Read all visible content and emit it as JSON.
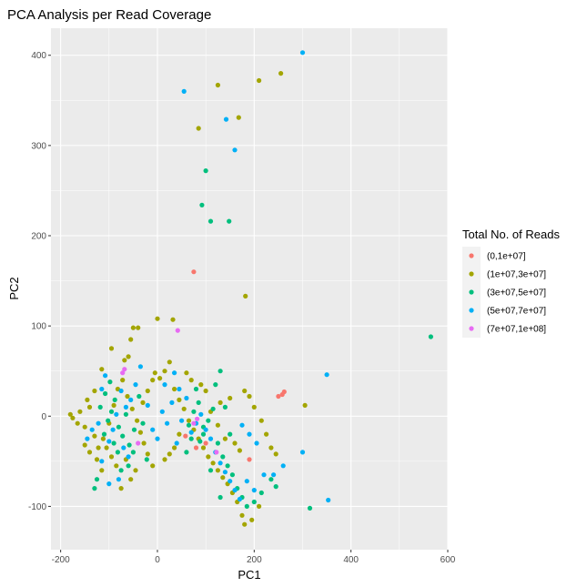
{
  "chart_data": {
    "type": "scatter",
    "title": "PCA Analysis per Read Coverage",
    "xlabel": "PC1",
    "ylabel": "PC2",
    "xlim": [
      -220,
      600
    ],
    "ylim": [
      -148,
      430
    ],
    "xticks": [
      -200,
      0,
      200,
      400,
      600
    ],
    "yticks": [
      -100,
      0,
      100,
      200,
      300,
      400
    ],
    "grid": true,
    "legend": {
      "title": "Total No. of Reads",
      "position": "right"
    },
    "series": [
      {
        "name": "(0,1e+07]",
        "color": "#F8766D",
        "points": [
          [
            75,
            160
          ],
          [
            250,
            22
          ],
          [
            258,
            24
          ],
          [
            262,
            27
          ],
          [
            190,
            -48
          ],
          [
            80,
            -35
          ],
          [
            100,
            -30
          ],
          [
            58,
            -22
          ]
        ]
      },
      {
        "name": "(1e+07,3e+07]",
        "color": "#A3A500",
        "points": [
          [
            125,
            367
          ],
          [
            210,
            372
          ],
          [
            255,
            380
          ],
          [
            85,
            319
          ],
          [
            168,
            331
          ],
          [
            182,
            133
          ],
          [
            0,
            108
          ],
          [
            32,
            107
          ],
          [
            -50,
            98
          ],
          [
            -40,
            98
          ],
          [
            -55,
            85
          ],
          [
            -60,
            66
          ],
          [
            -68,
            62
          ],
          [
            -95,
            75
          ],
          [
            -115,
            52
          ],
          [
            -130,
            28
          ],
          [
            -145,
            18
          ],
          [
            -160,
            5
          ],
          [
            -175,
            -2
          ],
          [
            -180,
            2
          ],
          [
            -165,
            -8
          ],
          [
            -150,
            -12
          ],
          [
            -140,
            10
          ],
          [
            -130,
            -22
          ],
          [
            -122,
            -35
          ],
          [
            -112,
            -25
          ],
          [
            -100,
            -8
          ],
          [
            -90,
            12
          ],
          [
            -82,
            30
          ],
          [
            -72,
            40
          ],
          [
            -62,
            22
          ],
          [
            -52,
            8
          ],
          [
            -42,
            -5
          ],
          [
            -35,
            -18
          ],
          [
            -28,
            -30
          ],
          [
            -20,
            -42
          ],
          [
            -10,
            -55
          ],
          [
            -45,
            -60
          ],
          [
            -55,
            -70
          ],
          [
            -75,
            -80
          ],
          [
            -115,
            -60
          ],
          [
            -125,
            -48
          ],
          [
            -140,
            -40
          ],
          [
            -150,
            -32
          ],
          [
            -105,
            -35
          ],
          [
            -95,
            -45
          ],
          [
            -85,
            -55
          ],
          [
            -65,
            -48
          ],
          [
            -30,
            15
          ],
          [
            -20,
            28
          ],
          [
            -10,
            40
          ],
          [
            5,
            42
          ],
          [
            15,
            50
          ],
          [
            25,
            60
          ],
          [
            35,
            30
          ],
          [
            45,
            18
          ],
          [
            55,
            8
          ],
          [
            65,
            -5
          ],
          [
            75,
            -15
          ],
          [
            85,
            -25
          ],
          [
            95,
            -35
          ],
          [
            105,
            -45
          ],
          [
            115,
            -52
          ],
          [
            125,
            -60
          ],
          [
            135,
            -68
          ],
          [
            145,
            -75
          ],
          [
            155,
            -85
          ],
          [
            165,
            -95
          ],
          [
            175,
            -110
          ],
          [
            180,
            -120
          ],
          [
            195,
            -115
          ],
          [
            210,
            -100
          ],
          [
            180,
            28
          ],
          [
            190,
            22
          ],
          [
            200,
            10
          ],
          [
            215,
            -5
          ],
          [
            225,
            -20
          ],
          [
            235,
            -35
          ],
          [
            245,
            -42
          ],
          [
            305,
            12
          ],
          [
            150,
            20
          ],
          [
            130,
            15
          ],
          [
            110,
            5
          ],
          [
            100,
            28
          ],
          [
            90,
            35
          ],
          [
            70,
            40
          ],
          [
            60,
            48
          ],
          [
            125,
            -10
          ],
          [
            140,
            -25
          ],
          [
            160,
            -30
          ],
          [
            170,
            -38
          ],
          [
            45,
            -20
          ],
          [
            35,
            -35
          ],
          [
            25,
            -42
          ],
          [
            15,
            -48
          ],
          [
            -5,
            48
          ]
        ]
      },
      {
        "name": "(3e+07,5e+07]",
        "color": "#00BF7D",
        "points": [
          [
            100,
            272
          ],
          [
            92,
            234
          ],
          [
            110,
            216
          ],
          [
            148,
            216
          ],
          [
            565,
            88
          ],
          [
            130,
            50
          ],
          [
            315,
            -102
          ],
          [
            -125,
            -70
          ],
          [
            -130,
            -80
          ],
          [
            -110,
            -20
          ],
          [
            -102,
            -5
          ],
          [
            -95,
            5
          ],
          [
            -88,
            18
          ],
          [
            -80,
            -12
          ],
          [
            -72,
            -22
          ],
          [
            -65,
            2
          ],
          [
            -58,
            -32
          ],
          [
            -48,
            -15
          ],
          [
            -38,
            22
          ],
          [
            -30,
            -8
          ],
          [
            -22,
            -48
          ],
          [
            -118,
            10
          ],
          [
            -108,
            25
          ],
          [
            -98,
            38
          ],
          [
            -90,
            -30
          ],
          [
            -82,
            -40
          ],
          [
            -75,
            -60
          ],
          [
            -60,
            -55
          ],
          [
            -50,
            -40
          ],
          [
            65,
            -10
          ],
          [
            75,
            5
          ],
          [
            85,
            15
          ],
          [
            95,
            -20
          ],
          [
            105,
            -5
          ],
          [
            115,
            8
          ],
          [
            125,
            -30
          ],
          [
            135,
            -45
          ],
          [
            145,
            -55
          ],
          [
            155,
            -65
          ],
          [
            165,
            -80
          ],
          [
            175,
            -90
          ],
          [
            185,
            -100
          ],
          [
            200,
            -95
          ],
          [
            215,
            -85
          ],
          [
            235,
            -70
          ],
          [
            245,
            -78
          ],
          [
            120,
            35
          ],
          [
            140,
            10
          ],
          [
            150,
            -20
          ],
          [
            80,
            30
          ],
          [
            70,
            -25
          ],
          [
            60,
            -40
          ],
          [
            110,
            -60
          ],
          [
            130,
            -90
          ],
          [
            95,
            -12
          ],
          [
            88,
            -28
          ]
        ]
      },
      {
        "name": "(5e+07,7e+07]",
        "color": "#00B0F6",
        "points": [
          [
            300,
            403
          ],
          [
            55,
            360
          ],
          [
            142,
            329
          ],
          [
            160,
            295
          ],
          [
            350,
            46
          ],
          [
            300,
            -40
          ],
          [
            353,
            -93
          ],
          [
            -35,
            55
          ],
          [
            -45,
            35
          ],
          [
            -55,
            18
          ],
          [
            -65,
            10
          ],
          [
            -75,
            28
          ],
          [
            -85,
            2
          ],
          [
            -92,
            -15
          ],
          [
            -100,
            -28
          ],
          [
            -108,
            45
          ],
          [
            -115,
            30
          ],
          [
            -122,
            -8
          ],
          [
            -135,
            -15
          ],
          [
            -145,
            -25
          ],
          [
            -20,
            12
          ],
          [
            -10,
            -15
          ],
          [
            0,
            -25
          ],
          [
            10,
            5
          ],
          [
            20,
            -8
          ],
          [
            30,
            15
          ],
          [
            40,
            -30
          ],
          [
            50,
            -5
          ],
          [
            60,
            20
          ],
          [
            70,
            -18
          ],
          [
            80,
            -8
          ],
          [
            90,
            2
          ],
          [
            100,
            -15
          ],
          [
            110,
            -25
          ],
          [
            120,
            -40
          ],
          [
            130,
            -52
          ],
          [
            140,
            -62
          ],
          [
            150,
            -72
          ],
          [
            160,
            -82
          ],
          [
            170,
            -92
          ],
          [
            185,
            -72
          ],
          [
            200,
            -82
          ],
          [
            220,
            -65
          ],
          [
            240,
            -65
          ],
          [
            260,
            -55
          ],
          [
            175,
            -10
          ],
          [
            190,
            -20
          ],
          [
            205,
            -30
          ],
          [
            -60,
            -45
          ],
          [
            -70,
            -35
          ],
          [
            -80,
            -70
          ],
          [
            -100,
            -75
          ],
          [
            -115,
            -50
          ],
          [
            35,
            48
          ],
          [
            45,
            30
          ],
          [
            15,
            35
          ]
        ]
      },
      {
        "name": "(7e+07,1e+08]",
        "color": "#E76BF3",
        "points": [
          [
            42,
            95
          ],
          [
            -72,
            48
          ],
          [
            -68,
            52
          ],
          [
            75,
            -8
          ],
          [
            82,
            -3
          ],
          [
            122,
            -40
          ],
          [
            -40,
            -30
          ]
        ]
      }
    ]
  }
}
